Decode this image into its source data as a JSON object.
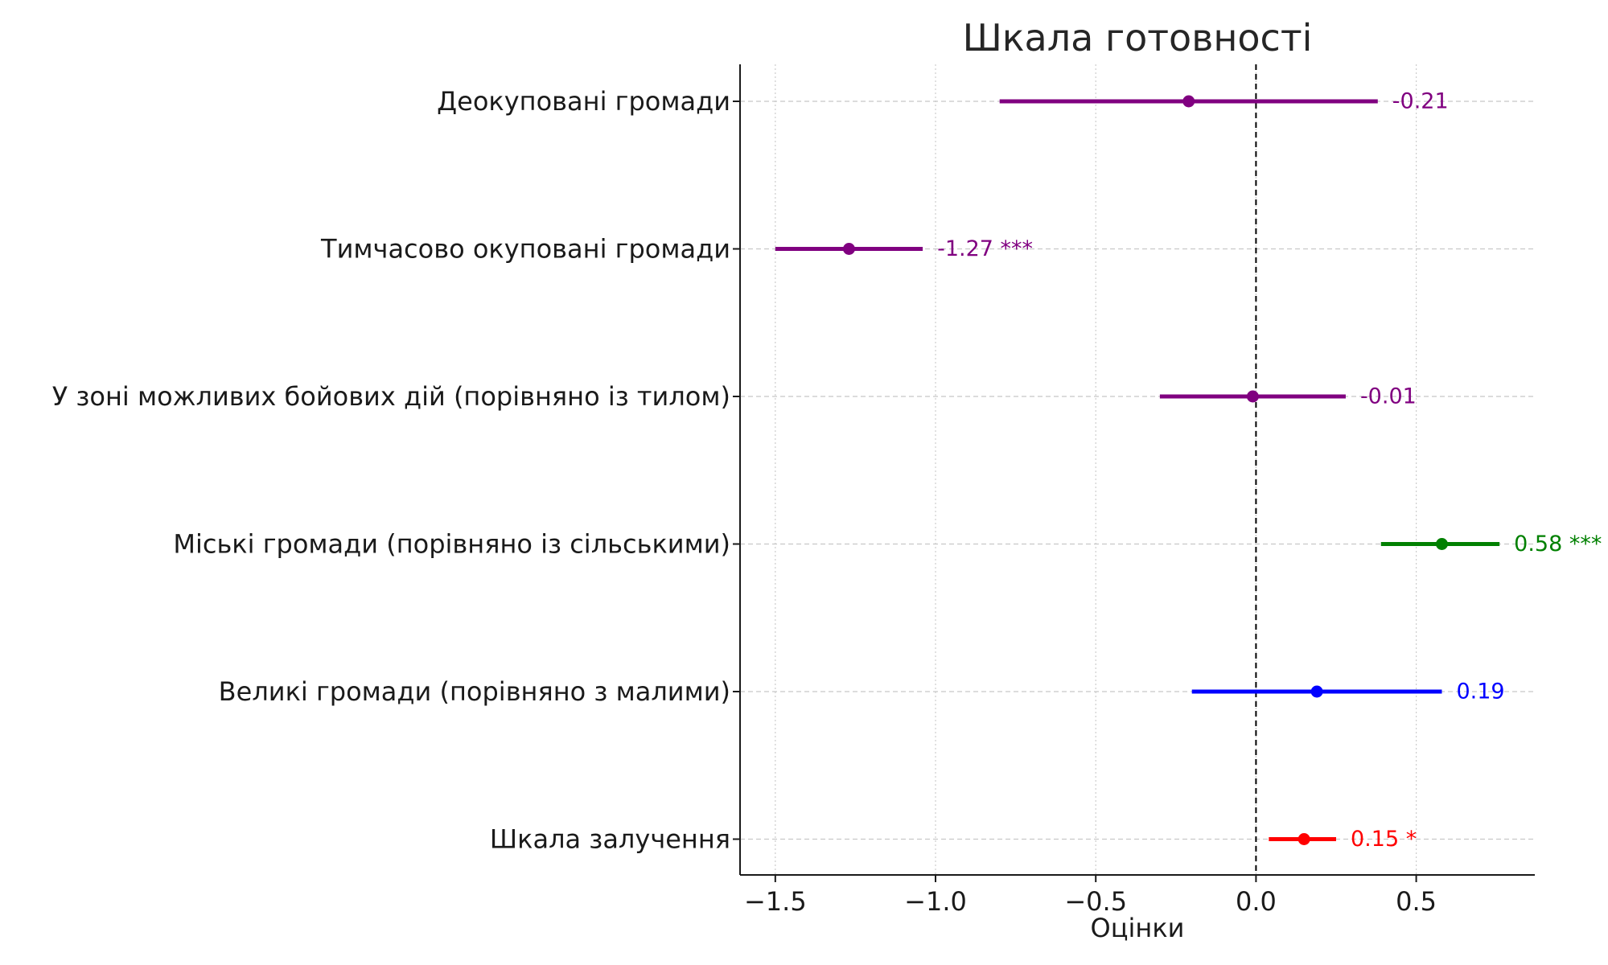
{
  "chart_data": {
    "type": "scatter",
    "subtype": "coefficient-plot",
    "title": "Шкала готовності",
    "xlabel": "Оцінки",
    "ylabel": "",
    "xlim": [
      -1.61,
      0.87
    ],
    "xticks": [
      -1.5,
      -1.0,
      -0.5,
      0.0,
      0.5
    ],
    "xtick_labels": [
      "−1.5",
      "−1.0",
      "−0.5",
      "0.0",
      "0.5"
    ],
    "grid": true,
    "reference_line": 0.0,
    "categories": [
      "Деокуповані громади",
      "Тимчасово окуповані громади",
      "У зоні можливих бойових дій (порівняно із тилом)",
      "Міські громади (порівняно із сільськими)",
      "Великі громади (порівняно з малими)",
      "Шкала залучення"
    ],
    "series": [
      {
        "points": [
          {
            "category": "Деокуповані громади",
            "estimate": -0.21,
            "ci": [
              -0.8,
              0.38
            ],
            "label": "-0.21",
            "color": "#800080"
          },
          {
            "category": "Тимчасово окуповані громади",
            "estimate": -1.27,
            "ci": [
              -1.5,
              -1.04
            ],
            "label": "-1.27 ***",
            "color": "#800080"
          },
          {
            "category": "У зоні можливих бойових дій (порівняно із тилом)",
            "estimate": -0.01,
            "ci": [
              -0.3,
              0.28
            ],
            "label": "-0.01",
            "color": "#800080"
          },
          {
            "category": "Міські громади (порівняно із сільськими)",
            "estimate": 0.58,
            "ci": [
              0.39,
              0.76
            ],
            "label": "0.58 ***",
            "color": "#008000"
          },
          {
            "category": "Великі громади (порівняно з малими)",
            "estimate": 0.19,
            "ci": [
              -0.2,
              0.58
            ],
            "label": "0.19",
            "color": "#0000ff"
          },
          {
            "category": "Шкала залучення",
            "estimate": 0.15,
            "ci": [
              0.04,
              0.25
            ],
            "label": "0.15 *",
            "color": "#ff0000"
          }
        ]
      }
    ]
  }
}
